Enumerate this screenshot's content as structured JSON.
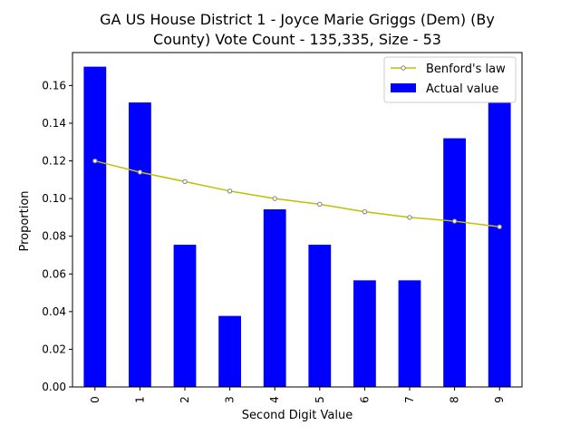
{
  "chart_data": {
    "type": "bar",
    "title_line1": "GA US House District 1 - Joyce Marie Griggs (Dem) (By",
    "title_line2": "County) Vote Count - 135,335, Size - 53",
    "xlabel": "Second Digit Value",
    "ylabel": "Proportion",
    "categories": [
      "0",
      "1",
      "2",
      "3",
      "4",
      "5",
      "6",
      "7",
      "8",
      "9"
    ],
    "ylim": [
      0,
      0.1775
    ],
    "yticks": [
      "0.00",
      "0.02",
      "0.04",
      "0.06",
      "0.08",
      "0.10",
      "0.12",
      "0.14",
      "0.16"
    ],
    "series": [
      {
        "name": "Actual value",
        "kind": "bar",
        "color": "#0000ff",
        "values": [
          0.17,
          0.151,
          0.0755,
          0.0377,
          0.0943,
          0.0755,
          0.0566,
          0.0566,
          0.132,
          0.151
        ]
      },
      {
        "name": "Benford's law",
        "kind": "line",
        "color": "#bfbf00",
        "marker_color": "#808080",
        "values": [
          0.12,
          0.114,
          0.109,
          0.104,
          0.1,
          0.097,
          0.093,
          0.09,
          0.088,
          0.085
        ]
      }
    ],
    "legend": {
      "placement": "top-right",
      "order": [
        "Benford's law",
        "Actual value"
      ]
    },
    "grid": false
  }
}
